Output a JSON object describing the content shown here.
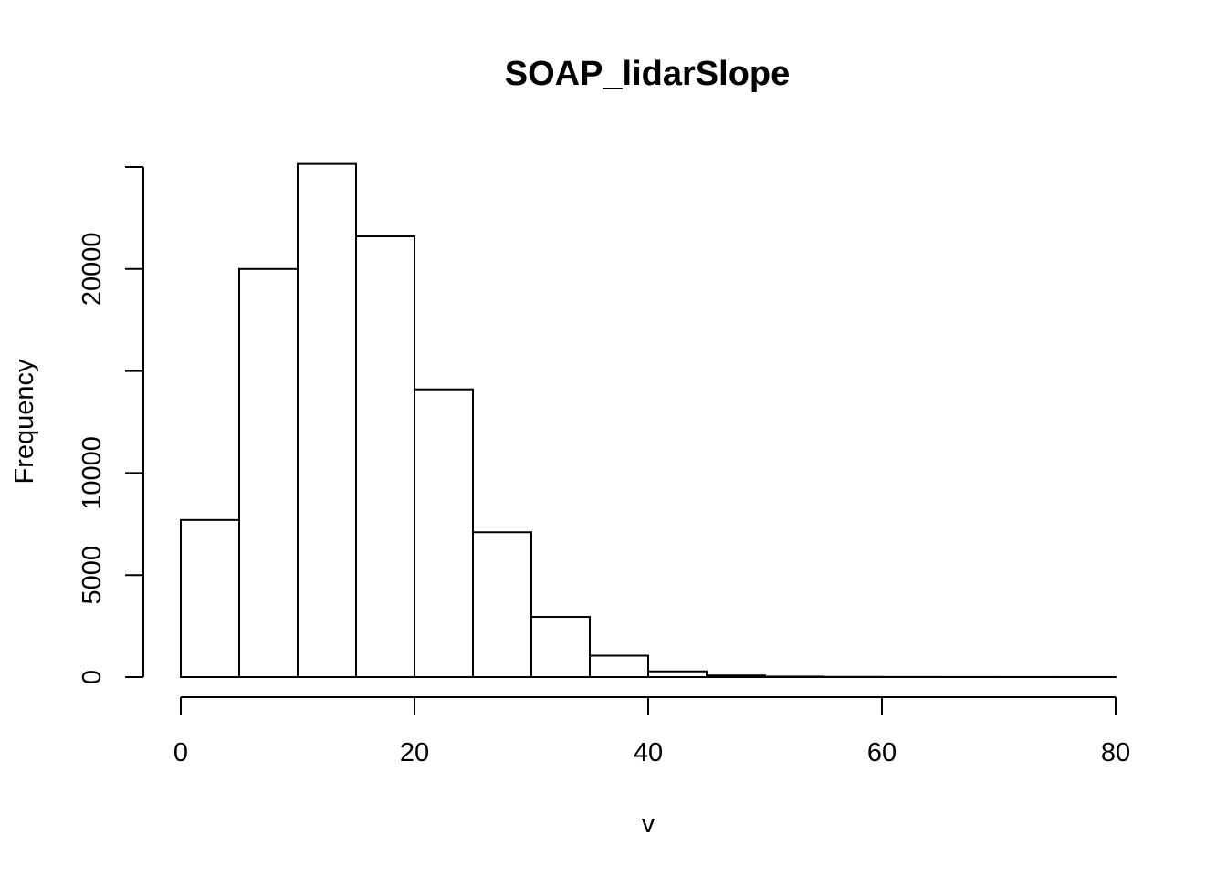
{
  "chart_data": {
    "type": "bar",
    "title": "SOAP_lidarSlope",
    "xlabel": "v",
    "ylabel": "Frequency",
    "bin_width": 5,
    "bins": [
      {
        "start": 0,
        "end": 5,
        "count": 7700
      },
      {
        "start": 5,
        "end": 10,
        "count": 20000
      },
      {
        "start": 10,
        "end": 15,
        "count": 25150
      },
      {
        "start": 15,
        "end": 20,
        "count": 21600
      },
      {
        "start": 20,
        "end": 25,
        "count": 14100
      },
      {
        "start": 25,
        "end": 30,
        "count": 7100
      },
      {
        "start": 30,
        "end": 35,
        "count": 2950
      },
      {
        "start": 35,
        "end": 40,
        "count": 1050
      },
      {
        "start": 40,
        "end": 45,
        "count": 280
      },
      {
        "start": 45,
        "end": 50,
        "count": 80
      },
      {
        "start": 50,
        "end": 55,
        "count": 25
      },
      {
        "start": 55,
        "end": 60,
        "count": 10
      },
      {
        "start": 60,
        "end": 65,
        "count": 5
      },
      {
        "start": 65,
        "end": 70,
        "count": 3
      },
      {
        "start": 70,
        "end": 75,
        "count": 2
      },
      {
        "start": 75,
        "end": 80,
        "count": 1
      }
    ],
    "xlim": [
      0,
      80
    ],
    "ylim": [
      0,
      25000
    ],
    "x_ticks": [
      0,
      20,
      40,
      60,
      80
    ],
    "y_ticks": [
      0,
      5000,
      10000,
      15000,
      20000,
      25000
    ],
    "y_tick_labels": [
      "0",
      "5000",
      "10000",
      "",
      "20000",
      ""
    ],
    "x_tick_labels": [
      "0",
      "20",
      "40",
      "60",
      "80"
    ],
    "grid": false,
    "colors": {
      "bar_fill": "#ffffff",
      "bar_stroke": "#000000"
    }
  }
}
